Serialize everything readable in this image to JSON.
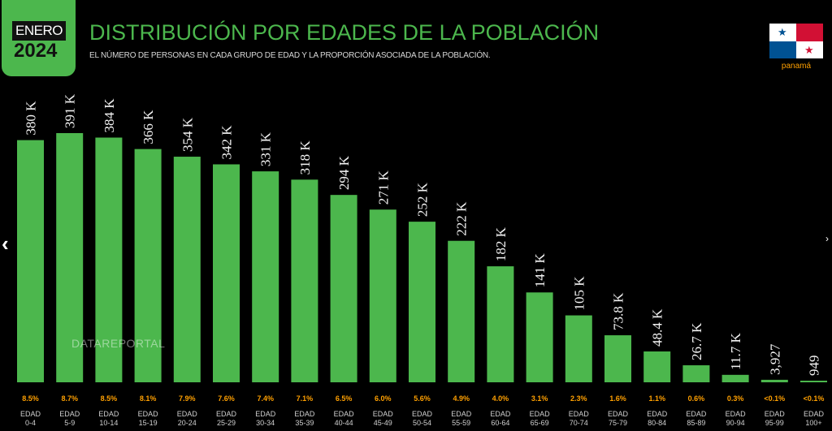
{
  "header": {
    "badge_month": "ENERO",
    "badge_year": "2024",
    "title": "DISTRIBUCIÓN POR EDADES DE LA POBLACIÓN",
    "subtitle": "EL NÚMERO DE PERSONAS EN CADA GRUPO DE EDAD Y LA PROPORCIÓN ASOCIADA DE LA POBLACIÓN.",
    "country": "panamá",
    "flag_icon": "panama-flag-icon"
  },
  "watermark": "DATAREPORTAL",
  "nav": {
    "prev": "‹",
    "next": "›"
  },
  "colors": {
    "accent": "#4cb74d",
    "percent": "#ffa000",
    "background": "#000000"
  },
  "chart_data": {
    "type": "bar",
    "title": "DISTRIBUCIÓN POR EDADES DE LA POBLACIÓN",
    "category_prefix": "EDAD",
    "categories": [
      "0-4",
      "5-9",
      "10-14",
      "15-19",
      "20-24",
      "25-29",
      "30-34",
      "35-39",
      "40-44",
      "45-49",
      "50-54",
      "55-59",
      "60-64",
      "65-69",
      "70-74",
      "75-79",
      "80-84",
      "85-89",
      "90-94",
      "95-99",
      "100+"
    ],
    "values": [
      380000,
      391000,
      384000,
      366000,
      354000,
      342000,
      331000,
      318000,
      294000,
      271000,
      252000,
      222000,
      182000,
      141000,
      105000,
      73800,
      48400,
      26700,
      11700,
      3927,
      949
    ],
    "value_labels": [
      "380 K",
      "391 K",
      "384 K",
      "366 K",
      "354 K",
      "342 K",
      "331 K",
      "318 K",
      "294 K",
      "271 K",
      "252 K",
      "222 K",
      "182 K",
      "141 K",
      "105 K",
      "73.8 K",
      "48.4 K",
      "26.7 K",
      "11.7 K",
      "3,927",
      "949"
    ],
    "percent_labels": [
      "8.5%",
      "8.7%",
      "8.5%",
      "8.1%",
      "7.9%",
      "7.6%",
      "7.4%",
      "7.1%",
      "6.5%",
      "6.0%",
      "5.6%",
      "4.9%",
      "4.0%",
      "3.1%",
      "2.3%",
      "1.6%",
      "1.1%",
      "0.6%",
      "0.3%",
      "<0.1%",
      "<0.1%"
    ],
    "ylim": [
      0,
      391000
    ],
    "grid": false,
    "legend": "none"
  }
}
